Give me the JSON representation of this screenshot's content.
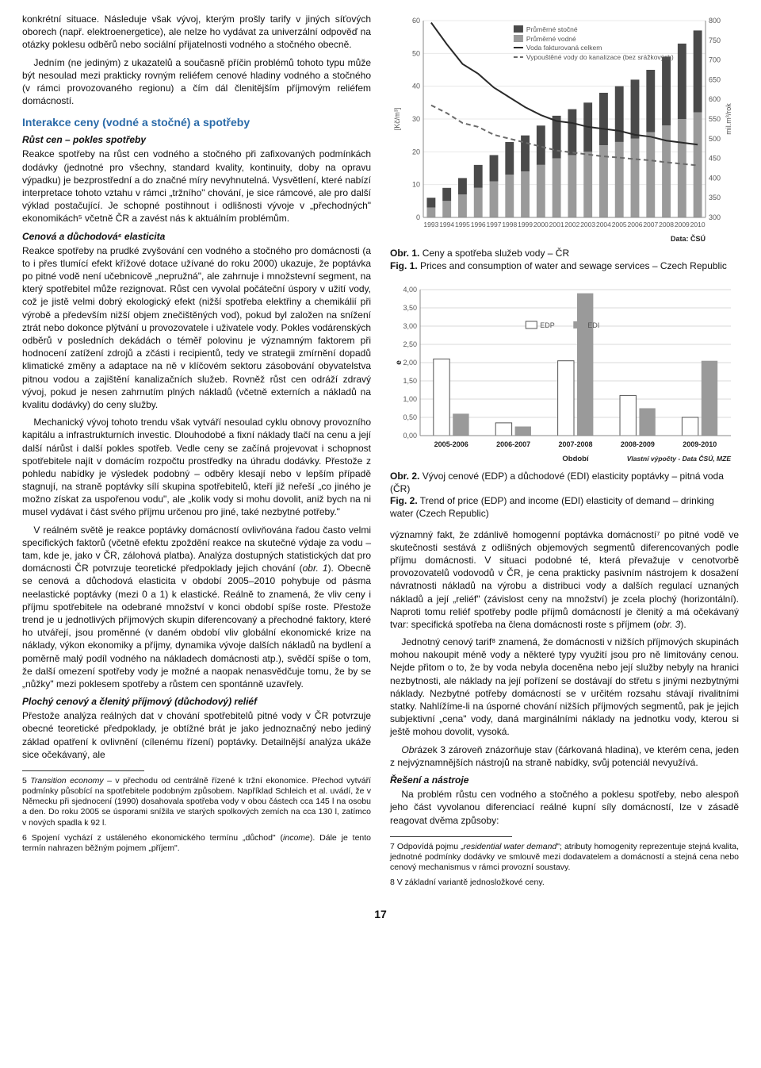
{
  "left": {
    "p1": "konkrétní situace. Následuje však vývoj, kterým prošly tarify v jiných síťových oborech (např. elektroenergetice), ale nelze ho vydávat za univerzální odpověď na otázky poklesu odběrů nebo sociální přijatelnosti vodného a stočného obecně.",
    "p2": "Jedním (ne jediným) z ukazatelů a současně příčin problémů tohoto typu může být nesoulad mezi prakticky rovným reliéfem cenové hladiny vodného a stočného (v rámci provozovaného regionu) a čím dál členitějším příjmovým reliéfem domácností.",
    "sec1": "Interakce ceny (vodné a stočné) a spotřeby",
    "sub1": "Růst cen – pokles spotřeby",
    "p3": "Reakce spotřeby na růst cen vodného a stočného při zafixovaných podmínkách dodávky (jednotné pro všechny, standard kvality, kontinuity, doby na opravu výpadku) je bezprostřední a do značné míry nevyhnutelná. Vysvětlení, které nabízí interpretace tohoto vztahu v rámci „tržního\" chování, je sice rámcové, ale pro další výklad postačující. Je schopné postihnout i odlišnosti vývoje v „přechodných\" ekonomikách⁵ včetně ČR a zavést nás k aktuálním problémům.",
    "sub2": "Cenová a důchodová⁶ elasticita",
    "p4": "Reakce spotřeby na prudké zvyšování cen vodného a stočného pro domácnosti (a to i přes tlumící efekt křížové dotace užívané do roku 2000) ukazuje, že poptávka po pitné vodě není učebnicově „nepružná\", ale zahrnuje i množstevní segment, na který spotřebitel může rezignovat. Růst cen vyvolal počáteční úspory v užití vody, což je jistě velmi dobrý ekologický efekt (nižší spotřeba elektřiny a chemikálií při výrobě a především nižší objem znečištěných vod), pokud byl založen na snížení ztrát nebo dokonce plýtvání u provozovatele i uživatele vody. Pokles vodárenských odběrů v posledních dekádách o téměř polovinu je významným faktorem při hodnocení zatížení zdrojů a zčásti i recipientů, tedy ve strategii zmírnění dopadů klimatické změny a adaptace na ně v klíčovém sektoru zásobování obyvatelstva pitnou vodou a zajištění kanalizačních služeb. Rovněž růst cen odráží zdravý vývoj, pokud je nesen zahrnutím plných nákladů (včetně externích a nákladů na kvalitu dodávky) do ceny služby.",
    "p5": "Mechanický vývoj tohoto trendu však vytváří nesoulad cyklu obnovy provozního kapitálu a infrastrukturních investic. Dlouhodobé a fixní náklady tlačí na cenu a její další nárůst i další pokles spotřeb. Vedle ceny se začíná projevovat i schopnost spotřebitele najít v domácím rozpočtu prostředky na úhradu dodávky. Přestože z pohledu nabídky je výsledek podobný – odběry klesají nebo v lepším případě stagnují, na straně poptávky sílí skupina spotřebitelů, kteří již neřeší „co jiného je možno získat za uspořenou vodu\", ale „kolik vody si mohu dovolit, aniž bych na ni musel vydávat i část svého příjmu určenou pro jiné, také nezbytné potřeby.\"",
    "p6a": "V reálném světě je reakce poptávky domácností ovlivňována řadou často velmi specifických faktorů (včetně efektu zpoždění reakce na skutečné výdaje za vodu – tam, kde je, jako v ČR, zálohová platba). Analýza dostupných statistických dat pro domácnosti ČR potvrzuje teoretické předpoklady jejich chování (",
    "p6_it": "obr. 1",
    "p6b": "). Obecně se cenová a důchodová elasticita v období 2005–2010 pohybuje od pásma neelastické poptávky (mezi 0 a 1) k elastické. Reálně to znamená, že vliv ceny i příjmu spotřebitele na odebrané množství v konci období spíše roste. Přestože trend je u jednotlivých příjmových skupin diferencovaný a přechodné faktory, které ho utvářejí, jsou proměnné (v daném období vliv globální ekonomické krize na náklady, výkon ekonomiky a příjmy, dynamika vývoje dalších nákladů na bydlení a poměrně malý podíl vodného na nákladech domácnosti atp.), svědčí spíše o tom, že další omezení spotřeby vody je možné a naopak nenasvědčuje tomu, že by se „nůžky\" mezi poklesem spotřeby a růstem cen spontánně uzavřely.",
    "sub3": "Plochý cenový a členitý příjmový (důchodový) reliéf",
    "p7": "Přestože analýza reálných dat v chování spotřebitelů pitné vody v ČR potvrzuje obecné teoretické předpoklady, je obtížné brát je jako jednoznačný nebo jediný základ opatření k ovlivnění (cílenému řízení) poptávky. Detailnější analýza ukáže sice očekávaný, ale",
    "fn5a": "5 ",
    "fn5b": "Transition economy",
    "fn5c": " – v přechodu od centrálně řízené k tržní ekonomice. Přechod vytváří podmínky působící na spotřebitele podobným způsobem. Například Schleich et al. uvádí, že v Německu při sjednocení (1990) dosahovala spotřeba vody v obou částech cca 145 l na osobu a den. Do roku 2005 se úsporami snížila ve starých spolkových zemích na cca 130 l, zatímco v nových spadla k 92 l.",
    "fn6a": "6 Spojení vychází z ustáleného ekonomického termínu „důchod\" (",
    "fn6b": "income",
    "fn6c": "). Dále je tento termín nahrazen běžným pojmem „příjem\"."
  },
  "right": {
    "cap1a": "Obr. 1.",
    "cap1b": " Ceny a spotřeba služeb vody – ČR",
    "cap1c": "Fig. 1.",
    "cap1d": " Prices and consumption of water and sewage services – Czech Republic",
    "cap2a": "Obr. 2.",
    "cap2b": " Vývoj cenové (EDP) a důchodové (EDI) elasticity poptávky – pitná voda (ČR)",
    "cap2c": "Fig. 2.",
    "cap2d": " Trend of price (EDP) and income (EDI) elasticity of demand – drinking water (Czech Republic)",
    "p8a": "významný fakt, že zdánlivě homogenní poptávka domácností⁷ po pitné vodě ve skutečnosti sestává z odlišných objemových segmentů diferencovaných podle příjmu domácnosti. V situaci podobné té, která převažuje v cenotvorbě provozovatelů vodovodů v ČR, je cena prakticky pasivním nástrojem k dosažení návratnosti nákladů na výrobu a distribuci vody a dalších regulací uznaných nákladů a její „reliéf\" (závislost ceny na množství) je zcela plochý (horizontální). Naproti tomu reliéf spotřeby podle příjmů domácností je členitý a má očekávaný tvar: specifická spotřeba na člena domácnosti roste s příjmem (",
    "p8_it": "obr. 3",
    "p8b": ").",
    "p9": "Jednotný cenový tarif⁸ znamená, že domácnosti v nižších příjmových skupinách mohou nakoupit méně vody a některé typy využití jsou pro ně limitovány cenou. Nejde přitom o to, že by voda nebyla doceněna nebo její služby nebyly na hranici nezbytnosti, ale náklady na její pořízení se dostávají do střetu s jinými nezbytnými náklady. Nezbytné potřeby domácností se v určitém rozsahu stávají rivalitními statky. Nahlížíme-li na úsporné chování nižších příjmových segmentů, pak je jejich subjektivní „cena\" vody, daná marginálními náklady na jednotku vody, kterou si ještě mohou dovolit, vysoká.",
    "p10a": "Obr",
    "p10b": "ázek 3",
    "p10c": " zároveň znázorňuje stav (čárkovaná hladina), ve kterém cena, jeden z nejvýznamnějších nástrojů na straně nabídky, svůj potenciál nevyužívá.",
    "sub4": "Řešení a nástroje",
    "p11": "Na problém růstu cen vodného a stočného a poklesu spotřeby, nebo alespoň jeho část vyvolanou diferenciací reálné kupní síly domácností, lze v zásadě reagovat dvěma způsoby:",
    "fn7a": "7 Odpovídá pojmu „",
    "fn7b": "residential water demand",
    "fn7c": "\"; atributy homogenity reprezentuje stejná kvalita, jednotné podmínky dodávky ve smlouvě mezi dodavatelem a domácností a stejná cena nebo cenový mechanismus v rámci provozní soustavy.",
    "fn8": "8 V základní variantě jednosložkové ceny."
  },
  "pagenum": "17",
  "chart1": {
    "years": [
      "1993",
      "1994",
      "1995",
      "1996",
      "1997",
      "1998",
      "1999",
      "2000",
      "2001",
      "2002",
      "2003",
      "2004",
      "2005",
      "2006",
      "2007",
      "2008",
      "2009",
      "2010"
    ],
    "y1_ticks": [
      0,
      10,
      20,
      30,
      40,
      50,
      60
    ],
    "y1_label": "[Kč/m³]",
    "y2_ticks": [
      300,
      350,
      400,
      450,
      500,
      550,
      600,
      650,
      700,
      750,
      800
    ],
    "y2_label": "mil.m³/rok",
    "series_vodne": [
      3,
      5,
      7,
      9,
      11,
      13,
      14,
      16,
      18,
      19,
      20,
      22,
      23,
      24,
      26,
      28,
      30,
      32
    ],
    "series_stocne": [
      3,
      4,
      5,
      7,
      8,
      10,
      11,
      12,
      13,
      14,
      15,
      16,
      17,
      18,
      19,
      21,
      23,
      25
    ],
    "line_fakt": [
      795,
      740,
      690,
      665,
      630,
      605,
      580,
      560,
      545,
      540,
      530,
      525,
      520,
      510,
      505,
      495,
      490,
      485
    ],
    "line_vypust": [
      585,
      565,
      540,
      530,
      510,
      500,
      490,
      480,
      470,
      465,
      460,
      455,
      452,
      448,
      445,
      440,
      436,
      432
    ],
    "legend": [
      "Průměrné stočné",
      "Průměrné vodné",
      "Voda fakturovaná celkem",
      "Vypouštěné vody do kanalizace (bez srážkových)"
    ],
    "data_label": "Data: ČSÚ",
    "colors": {
      "bar_dark": "#4a4a4a",
      "bar_light": "#9a9a9a",
      "line_solid": "#2a2a2a",
      "line_dash": "#6a6a6a",
      "grid": "#e8e8e8",
      "axis": "#888",
      "text": "#555"
    }
  },
  "chart2": {
    "periods": [
      "2005-2006",
      "2006-2007",
      "2007-2008",
      "2008-2009",
      "2009-2010"
    ],
    "y_ticks": [
      "0,00",
      "0,50",
      "1,00",
      "1,50",
      "2,00",
      "2,50",
      "3,00",
      "3,50",
      "4,00"
    ],
    "y_label": "e",
    "x_label": "Období",
    "edp": [
      2.1,
      0.35,
      2.05,
      1.1,
      0.5
    ],
    "edi": [
      0.6,
      0.25,
      3.9,
      0.75,
      2.05
    ],
    "legend_edp": "EDP",
    "legend_edi": "EDI",
    "data_label": "Vlastní výpočty - Data ČSÚ, MZE",
    "colors": {
      "edp_fill": "#ffffff",
      "edp_border": "#555",
      "edi_fill": "#9a9a9a",
      "grid": "#d8d8d8",
      "axis": "#888",
      "text": "#555"
    }
  }
}
